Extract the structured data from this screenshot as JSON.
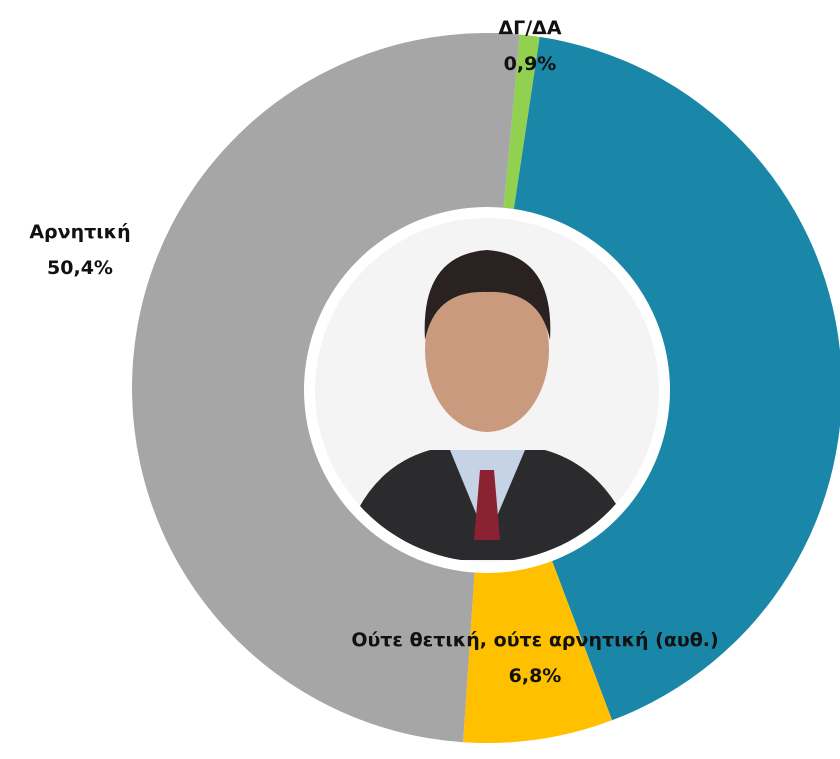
{
  "chart_data": {
    "type": "donut",
    "categories": [
      "ΔΓ/ΔΑ",
      null,
      "Ούτε θετική, ούτε αρνητική (αυθ.)",
      "Αρνητική"
    ],
    "values": [
      0.9,
      41.9,
      6.8,
      50.4
    ],
    "value_labels": [
      "0,9%",
      null,
      "6,8%",
      "50,4%"
    ],
    "colors": [
      "#92d050",
      "#1a87a8",
      "#ffc000",
      "#a6a6a6"
    ]
  }
}
